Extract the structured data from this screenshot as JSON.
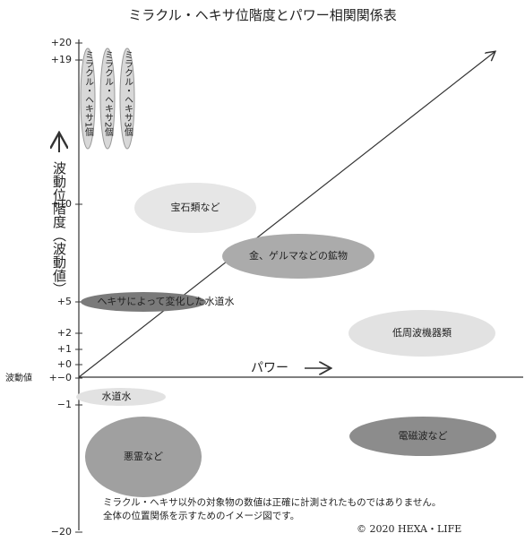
{
  "title": "ミラクル・ヘキサ位階度とパワー相関関係表",
  "y_axis": {
    "title": "波動位階度（波動値）",
    "zero_prefix": "波動値",
    "ticks": [
      "+20",
      "+19",
      "+10",
      "+5",
      "+2",
      "+1",
      "+0",
      "+−0",
      "−1",
      "−20"
    ]
  },
  "x_axis": {
    "title": "パワー"
  },
  "markers": [
    "ミラクル・ヘキサ1個",
    "ミラクル・ヘキサ2個",
    "ミラクル・ヘキサ3個"
  ],
  "bubbles": [
    "宝石類など",
    "金、ゲルマなどの鉱物",
    "ヘキサによって変化した水道水",
    "低周波機器類",
    "水道水",
    "悪霊など",
    "電磁波など"
  ],
  "footnote": [
    "ミラクル・ヘキサ以外の対象物の数値は正確に計測されたものではありません。",
    "全体の位置関係を示すためのイメージ図です。"
  ],
  "copyright": "© 2020  HEXA・LIFE"
}
